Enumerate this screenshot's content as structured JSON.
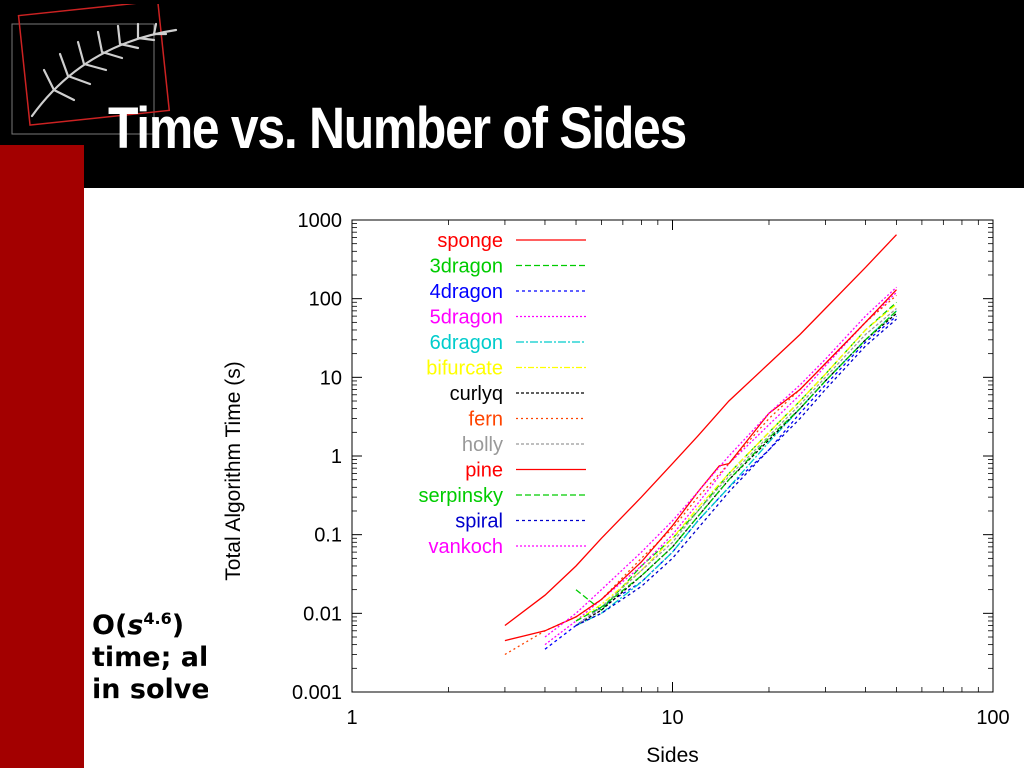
{
  "slide": {
    "title": "Time vs. Number of Sides",
    "note_prefix": "O(",
    "note_var": "s",
    "note_exp": "4.6",
    "note_suffix": ")",
    "note_line2": "time; all",
    "note_line3": "in solver",
    "colors": {
      "background_band": "#000000",
      "accent_red": "#a30000",
      "title": "#ffffff"
    },
    "logo_icon": "fern-leaf-icon"
  },
  "chart_data": {
    "type": "line",
    "xlabel": "Sides",
    "ylabel": "Total Algorithm Time (s)",
    "xscale": "log",
    "yscale": "log",
    "xlim": [
      1,
      100
    ],
    "ylim": [
      0.001,
      1000
    ],
    "x_ticks": [
      1,
      10,
      100
    ],
    "x_tick_labels": [
      "1",
      "10",
      "100"
    ],
    "y_ticks": [
      0.001,
      0.01,
      0.1,
      1,
      10,
      100,
      1000
    ],
    "y_tick_labels": [
      "0.001",
      "0.01",
      "0.1",
      "1",
      "10",
      "100",
      "1000"
    ],
    "grid": false,
    "legend_position": "top-left inside",
    "series": [
      {
        "name": "sponge",
        "color": "#ff0000",
        "dash": "",
        "x": [
          3,
          4,
          5,
          6,
          8,
          10,
          12,
          15,
          20,
          25,
          30,
          40,
          50
        ],
        "y": [
          0.007,
          0.017,
          0.04,
          0.09,
          0.3,
          0.8,
          1.8,
          5,
          15,
          35,
          75,
          250,
          650
        ]
      },
      {
        "name": "3dragon",
        "color": "#00cc00",
        "dash": "6,3",
        "x": [
          5,
          6,
          8,
          10,
          12,
          15,
          20,
          25,
          30,
          40,
          50
        ],
        "y": [
          0.02,
          0.011,
          0.04,
          0.09,
          0.2,
          0.6,
          2.0,
          5,
          11,
          40,
          90
        ]
      },
      {
        "name": "4dragon",
        "color": "#0000ff",
        "dash": "3,3",
        "x": [
          4,
          5,
          6,
          8,
          10,
          12,
          15,
          20,
          25,
          30,
          40,
          50
        ],
        "y": [
          0.0035,
          0.007,
          0.012,
          0.025,
          0.06,
          0.15,
          0.4,
          1.2,
          3.5,
          8,
          28,
          60
        ]
      },
      {
        "name": "5dragon",
        "color": "#ff00ff",
        "dash": "2,2",
        "x": [
          4,
          5,
          6,
          8,
          10,
          12,
          15,
          20,
          25,
          30,
          40,
          50
        ],
        "y": [
          0.004,
          0.008,
          0.015,
          0.04,
          0.1,
          0.25,
          0.8,
          2.5,
          6,
          14,
          50,
          120
        ]
      },
      {
        "name": "6dragon",
        "color": "#00cccc",
        "dash": "8,2,2,2",
        "x": [
          5,
          6,
          8,
          10,
          12,
          15,
          20,
          25,
          30,
          40,
          50
        ],
        "y": [
          0.007,
          0.01,
          0.025,
          0.06,
          0.15,
          0.4,
          1.5,
          4,
          9,
          30,
          70
        ]
      },
      {
        "name": "bifurcate",
        "color": "#ffff00",
        "dash": "6,2,2,2",
        "x": [
          5,
          6,
          8,
          10,
          12,
          15,
          20,
          25,
          30,
          40,
          50
        ],
        "y": [
          0.008,
          0.013,
          0.035,
          0.09,
          0.22,
          0.6,
          2,
          5,
          11,
          40,
          85
        ]
      },
      {
        "name": "curlyq",
        "color": "#000000",
        "dash": "3,2",
        "x": [
          5,
          6,
          8,
          10,
          12,
          15,
          20,
          25,
          30,
          40,
          50
        ],
        "y": [
          0.007,
          0.011,
          0.03,
          0.07,
          0.17,
          0.5,
          1.6,
          4,
          9,
          30,
          65
        ]
      },
      {
        "name": "fern",
        "color": "#ff4400",
        "dash": "2,3",
        "x": [
          3,
          4,
          5,
          6,
          8,
          10,
          12,
          15,
          20,
          25,
          30,
          40,
          50
        ],
        "y": [
          0.003,
          0.006,
          0.009,
          0.015,
          0.05,
          0.12,
          0.3,
          0.8,
          3,
          7,
          15,
          50,
          110
        ]
      },
      {
        "name": "holly",
        "color": "#999999",
        "dash": "3,2",
        "x": [
          5,
          6,
          8,
          10,
          12,
          15,
          20,
          25,
          30,
          40,
          50
        ],
        "y": [
          0.007,
          0.012,
          0.035,
          0.08,
          0.2,
          0.55,
          1.8,
          4.5,
          10,
          35,
          75
        ]
      },
      {
        "name": "pine",
        "color": "#ff0000",
        "dash": "",
        "x": [
          3,
          4,
          5,
          6,
          8,
          10,
          12,
          14,
          15,
          20,
          25,
          30,
          40,
          50
        ],
        "y": [
          0.0045,
          0.006,
          0.009,
          0.015,
          0.045,
          0.13,
          0.35,
          0.75,
          0.8,
          3.5,
          7,
          15,
          50,
          130
        ]
      },
      {
        "name": "serpinsky",
        "color": "#00cc00",
        "dash": "6,3",
        "x": [
          5,
          6,
          8,
          10,
          12,
          15,
          20,
          25,
          30,
          40,
          50
        ],
        "y": [
          0.008,
          0.012,
          0.03,
          0.07,
          0.17,
          0.5,
          1.7,
          4,
          9,
          30,
          70
        ]
      },
      {
        "name": "spiral",
        "color": "#0000cc",
        "dash": "3,3",
        "x": [
          5,
          6,
          8,
          10,
          12,
          15,
          20,
          25,
          30,
          40,
          50
        ],
        "y": [
          0.007,
          0.01,
          0.022,
          0.05,
          0.12,
          0.35,
          1.2,
          3,
          7,
          25,
          55
        ]
      },
      {
        "name": "vankoch",
        "color": "#ff00ff",
        "dash": "2,2",
        "x": [
          4,
          5,
          6,
          8,
          10,
          12,
          15,
          20,
          25,
          30,
          40,
          50
        ],
        "y": [
          0.005,
          0.01,
          0.02,
          0.06,
          0.15,
          0.35,
          1.0,
          3.5,
          8,
          17,
          60,
          140
        ]
      }
    ]
  }
}
